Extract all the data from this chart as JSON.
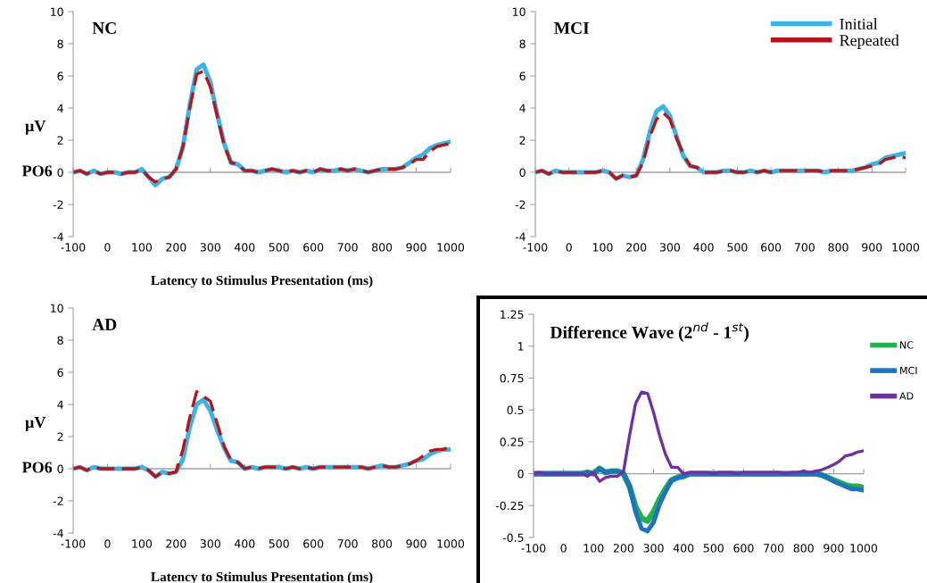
{
  "chart_data": [
    {
      "type": "line",
      "title": "NC",
      "ref_lines": [
        {
          "axis": "y",
          "value": 0,
          "color": "#a0a0a0"
        }
      ],
      "ylabel": "µV",
      "xlabel": "Latency to Stimulus Presentation (ms)",
      "annotations": [
        "PO6"
      ],
      "xlim": [
        -100,
        1000
      ],
      "ylim": [
        -4,
        10
      ],
      "xticks": [
        -100,
        0,
        100,
        200,
        300,
        400,
        500,
        600,
        700,
        800,
        900,
        1000
      ],
      "yticks": [
        -4,
        -2,
        0,
        2,
        4,
        6,
        8,
        10
      ],
      "grid": false,
      "legend": false,
      "x": [
        -100,
        -80,
        -60,
        -40,
        -20,
        0,
        20,
        40,
        60,
        80,
        100,
        120,
        140,
        160,
        180,
        200,
        220,
        240,
        260,
        280,
        300,
        320,
        340,
        360,
        380,
        400,
        420,
        440,
        460,
        480,
        500,
        520,
        540,
        560,
        580,
        600,
        620,
        640,
        660,
        680,
        700,
        720,
        740,
        760,
        780,
        800,
        820,
        840,
        860,
        880,
        900,
        920,
        940,
        960,
        980,
        1000
      ],
      "series": [
        {
          "color": "#3fb3e3",
          "line_style": "solid",
          "values": [
            0,
            0.1,
            -0.1,
            0.1,
            -0.1,
            0,
            0,
            -0.1,
            0,
            0,
            0.2,
            -0.3,
            -0.8,
            -0.4,
            -0.3,
            0.2,
            1.6,
            4.2,
            6.4,
            6.7,
            5.6,
            3.6,
            1.8,
            0.6,
            0.5,
            0.1,
            0.1,
            0,
            0.1,
            0.2,
            0.1,
            0,
            0.1,
            0,
            0.1,
            0,
            0.2,
            0.1,
            0.1,
            0.2,
            0.1,
            0.2,
            0.1,
            0,
            0.1,
            0.2,
            0.2,
            0.2,
            0.3,
            0.6,
            0.9,
            1.1,
            1.5,
            1.7,
            1.8,
            1.9
          ]
        },
        {
          "color": "#b5151b",
          "line_style": "dashed",
          "values": [
            0,
            0.1,
            -0.1,
            0.1,
            -0.1,
            0,
            0,
            -0.1,
            0,
            0,
            0.2,
            -0.3,
            -0.6,
            -0.4,
            -0.3,
            0.2,
            1.6,
            4.0,
            6.1,
            6.3,
            5.3,
            3.5,
            1.7,
            0.6,
            0.5,
            0.1,
            0.1,
            0,
            0.1,
            0.2,
            0.1,
            0,
            0.1,
            0,
            0.1,
            0,
            0.2,
            0.1,
            0.1,
            0.2,
            0.1,
            0.2,
            0.1,
            0,
            0.1,
            0.2,
            0.2,
            0.2,
            0.3,
            0.5,
            0.8,
            0.8,
            1.3,
            1.6,
            1.7,
            1.8
          ]
        }
      ]
    },
    {
      "type": "line",
      "title": "MCI",
      "ref_lines": [
        {
          "axis": "y",
          "value": 0,
          "color": "#a0a0a0"
        }
      ],
      "xlim": [
        -100,
        1000
      ],
      "ylim": [
        -4,
        10
      ],
      "xticks": [
        -100,
        0,
        100,
        200,
        300,
        400,
        500,
        600,
        700,
        800,
        900,
        1000
      ],
      "yticks": [
        -4,
        -2,
        0,
        2,
        4,
        6,
        8,
        10
      ],
      "grid": false,
      "legend": "top right",
      "x": [
        -100,
        -80,
        -60,
        -40,
        -20,
        0,
        20,
        40,
        60,
        80,
        100,
        120,
        140,
        160,
        180,
        200,
        220,
        240,
        260,
        280,
        300,
        320,
        340,
        360,
        380,
        400,
        420,
        440,
        460,
        480,
        500,
        520,
        540,
        560,
        580,
        600,
        620,
        640,
        660,
        680,
        700,
        720,
        740,
        760,
        780,
        800,
        820,
        840,
        860,
        880,
        900,
        920,
        940,
        960,
        980,
        1000
      ],
      "series": [
        {
          "name": "Initial",
          "color": "#3fb3e3",
          "line_style": "solid",
          "values": [
            0,
            0.1,
            -0.1,
            0.1,
            0,
            0,
            0,
            0,
            0,
            0,
            0.1,
            0,
            -0.4,
            -0.2,
            -0.3,
            -0.2,
            0.8,
            2.5,
            3.8,
            4.1,
            3.5,
            2.2,
            1,
            0.4,
            0.3,
            0,
            0,
            0,
            0.1,
            0.1,
            0,
            0,
            0.1,
            0,
            0.1,
            0,
            0.1,
            0.1,
            0.1,
            0.1,
            0.1,
            0.1,
            0.1,
            0,
            0.1,
            0.1,
            0.1,
            0.1,
            0.2,
            0.3,
            0.5,
            0.6,
            0.9,
            1,
            1.1,
            1.2
          ]
        },
        {
          "name": "Repeated",
          "color": "#b5151b",
          "line_style": "dashed",
          "values": [
            0,
            0.1,
            -0.1,
            0.1,
            0,
            0,
            0,
            0,
            0,
            0,
            0.1,
            0,
            -0.4,
            -0.2,
            -0.3,
            -0.2,
            0.6,
            2.2,
            3.3,
            3.7,
            3.3,
            2.1,
            1.1,
            0.4,
            0.3,
            0,
            0,
            0,
            0.1,
            0.1,
            0,
            0,
            0.1,
            0,
            0.1,
            0,
            0.1,
            0.1,
            0.1,
            0.1,
            0.1,
            0.1,
            0.1,
            0,
            0.1,
            0.1,
            0.1,
            0.1,
            0.2,
            0.3,
            0.4,
            0.5,
            0.8,
            0.9,
            1,
            0.9
          ]
        }
      ]
    },
    {
      "type": "line",
      "title": "AD",
      "ref_lines": [
        {
          "axis": "y",
          "value": 0,
          "color": "#a0a0a0"
        }
      ],
      "ylabel": "µV",
      "xlabel": "Latency to Stimulus Presentation (ms)",
      "annotations": [
        "PO6"
      ],
      "xlim": [
        -100,
        1000
      ],
      "ylim": [
        -4,
        10
      ],
      "xticks": [
        -100,
        0,
        100,
        200,
        300,
        400,
        500,
        600,
        700,
        800,
        900,
        1000
      ],
      "yticks": [
        -4,
        -2,
        0,
        2,
        4,
        6,
        8,
        10
      ],
      "grid": false,
      "legend": false,
      "x": [
        -100,
        -80,
        -60,
        -40,
        -20,
        0,
        20,
        40,
        60,
        80,
        100,
        120,
        140,
        160,
        180,
        200,
        220,
        240,
        260,
        280,
        300,
        320,
        340,
        360,
        380,
        400,
        420,
        440,
        460,
        480,
        500,
        520,
        540,
        560,
        580,
        600,
        620,
        640,
        660,
        680,
        700,
        720,
        740,
        760,
        780,
        800,
        820,
        840,
        860,
        880,
        900,
        920,
        940,
        960,
        980,
        1000
      ],
      "series": [
        {
          "color": "#3fb3e3",
          "line_style": "solid",
          "values": [
            0,
            0.1,
            -0.1,
            0.1,
            0,
            0,
            0,
            0,
            0,
            0,
            0.1,
            -0.1,
            -0.5,
            -0.2,
            -0.3,
            -0.2,
            0.6,
            2.6,
            4,
            4.3,
            3.6,
            2.4,
            1.3,
            0.5,
            0.4,
            0,
            0.1,
            0,
            0.1,
            0.1,
            0.1,
            0,
            0.1,
            0,
            0.1,
            0,
            0.1,
            0.1,
            0.1,
            0.1,
            0.1,
            0.1,
            0.1,
            0,
            0.1,
            0.2,
            0.1,
            0.1,
            0.2,
            0.3,
            0.5,
            0.6,
            0.9,
            1.1,
            1.2,
            1.2
          ]
        },
        {
          "color": "#b5151b",
          "line_style": "dashed",
          "values": [
            0,
            0.1,
            -0.1,
            0.1,
            0,
            0,
            0,
            0,
            0,
            0,
            0.1,
            -0.1,
            -0.5,
            -0.2,
            -0.3,
            -0.2,
            1.2,
            3.2,
            4.8,
            4.5,
            4.2,
            2.8,
            1.4,
            0.5,
            0.4,
            0,
            0.1,
            0,
            0.1,
            0.1,
            0.1,
            0,
            0.1,
            0,
            0.1,
            0,
            0.1,
            0.1,
            0.1,
            0.1,
            0.1,
            0.1,
            0.1,
            0,
            0.1,
            0.2,
            0.1,
            0.1,
            0.2,
            0.3,
            0.5,
            0.8,
            1.1,
            1.2,
            1.2,
            1.4
          ]
        }
      ]
    },
    {
      "type": "line",
      "title": "Difference Wave (2$^{nd}$ - 1$^{st}$)",
      "ref_lines": [
        {
          "axis": "y",
          "value": 0,
          "color": "#a0a0a0"
        }
      ],
      "xlim": [
        -100,
        1000
      ],
      "ylim": [
        -0.5,
        1.25
      ],
      "xticks": [
        -100,
        0,
        100,
        200,
        300,
        400,
        500,
        600,
        700,
        800,
        900,
        1000
      ],
      "yticks": [
        -0.5,
        -0.25,
        0,
        0.25,
        0.5,
        0.75,
        1,
        1.25
      ],
      "grid": false,
      "legend": "right",
      "x": [
        -100,
        -80,
        -60,
        -40,
        -20,
        0,
        20,
        40,
        60,
        80,
        100,
        120,
        140,
        160,
        180,
        200,
        220,
        240,
        260,
        280,
        300,
        320,
        340,
        360,
        380,
        400,
        420,
        440,
        460,
        480,
        500,
        520,
        540,
        560,
        580,
        600,
        620,
        640,
        660,
        680,
        700,
        720,
        740,
        760,
        780,
        800,
        820,
        840,
        860,
        880,
        900,
        920,
        940,
        960,
        980,
        1000
      ],
      "series": [
        {
          "name": "NC",
          "color": "#22b04b",
          "line_style": "solid",
          "values": [
            0,
            0,
            0,
            0,
            0,
            0,
            0,
            0,
            0,
            0.01,
            0,
            0.04,
            0.01,
            0.02,
            0.02,
            0,
            -0.1,
            -0.26,
            -0.35,
            -0.37,
            -0.3,
            -0.2,
            -0.12,
            -0.05,
            -0.03,
            -0.02,
            0,
            0,
            0,
            0,
            0,
            0,
            0,
            0,
            0,
            0,
            0,
            0,
            0,
            0,
            0,
            0,
            0,
            0,
            0,
            0,
            0,
            0,
            -0.01,
            -0.03,
            -0.05,
            -0.07,
            -0.09,
            -0.1,
            -0.1,
            -0.11
          ]
        },
        {
          "name": "MCI",
          "color": "#1e73be",
          "line_style": "solid",
          "values": [
            0,
            0,
            0,
            0,
            0,
            0,
            0,
            0,
            0,
            0.01,
            0,
            0.04,
            0.01,
            0.02,
            0.02,
            0,
            -0.1,
            -0.3,
            -0.43,
            -0.45,
            -0.38,
            -0.24,
            -0.14,
            -0.05,
            -0.03,
            -0.02,
            0,
            0,
            0,
            0,
            0,
            0,
            0,
            0,
            0,
            0,
            0,
            0,
            0,
            0,
            0,
            0,
            0,
            0,
            0,
            0,
            0,
            0,
            -0.01,
            -0.03,
            -0.06,
            -0.08,
            -0.1,
            -0.12,
            -0.12,
            -0.13
          ]
        },
        {
          "name": "AD",
          "color": "#7030a0",
          "line_style": "solid",
          "values": [
            0,
            0.01,
            0,
            0,
            0,
            0,
            0,
            0,
            0,
            -0.02,
            0.01,
            -0.06,
            -0.03,
            -0.02,
            -0.02,
            0.02,
            0.3,
            0.55,
            0.64,
            0.63,
            0.48,
            0.3,
            0.15,
            0.05,
            0.05,
            0,
            0.01,
            0.01,
            0.01,
            0.01,
            0,
            0.01,
            0.01,
            0.01,
            0,
            0.01,
            0.01,
            0.01,
            0.01,
            0.01,
            0.01,
            0.01,
            0,
            0.01,
            0.01,
            0.02,
            0.01,
            0.02,
            0.03,
            0.05,
            0.07,
            0.1,
            0.14,
            0.15,
            0.17,
            0.18
          ]
        }
      ]
    }
  ]
}
